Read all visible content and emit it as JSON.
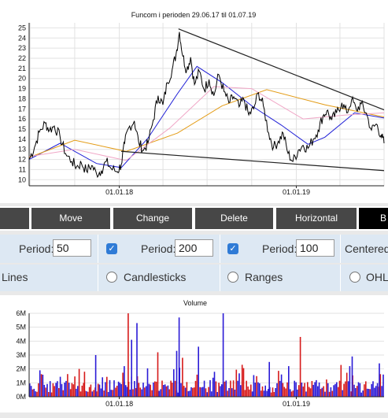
{
  "chart_data": [
    {
      "type": "line",
      "title": "Funcom i perioden 29.06.17 til 01.07.19",
      "x_range": [
        "2017-06-29",
        "2019-07-01"
      ],
      "ylim": [
        9.4,
        25.5
      ],
      "y_ticks": [
        10,
        11,
        12,
        13,
        14,
        15,
        16,
        17,
        18,
        19,
        20,
        21,
        22,
        23,
        24,
        25
      ],
      "x_tick_labels": [
        {
          "date": "2018-01-01",
          "label": "01.01.18"
        },
        {
          "date": "2019-01-01",
          "label": "01.01.19"
        }
      ],
      "grid": true,
      "price": [
        [
          "2017-06-29",
          12.0
        ],
        [
          "2017-07-10",
          13.2
        ],
        [
          "2017-07-20",
          14.7
        ],
        [
          "2017-08-01",
          15.6
        ],
        [
          "2017-08-10",
          14.9
        ],
        [
          "2017-08-20",
          15.3
        ],
        [
          "2017-09-01",
          14.2
        ],
        [
          "2017-09-12",
          12.6
        ],
        [
          "2017-09-25",
          11.8
        ],
        [
          "2017-10-05",
          11.3
        ],
        [
          "2017-10-15",
          11.6
        ],
        [
          "2017-10-25",
          10.9
        ],
        [
          "2017-11-05",
          11.4
        ],
        [
          "2017-11-15",
          10.6
        ],
        [
          "2017-11-25",
          10.9
        ],
        [
          "2017-12-05",
          11.8
        ],
        [
          "2017-12-15",
          11.1
        ],
        [
          "2017-12-28",
          10.8
        ],
        [
          "2018-01-05",
          11.5
        ],
        [
          "2018-01-12",
          13.6
        ],
        [
          "2018-01-20",
          15.1
        ],
        [
          "2018-02-01",
          15.8
        ],
        [
          "2018-02-10",
          13.7
        ],
        [
          "2018-02-20",
          12.9
        ],
        [
          "2018-03-01",
          13.6
        ],
        [
          "2018-03-12",
          15.9
        ],
        [
          "2018-03-22",
          18.3
        ],
        [
          "2018-04-01",
          17.4
        ],
        [
          "2018-04-10",
          19.6
        ],
        [
          "2018-04-20",
          20.9
        ],
        [
          "2018-04-28",
          22.4
        ],
        [
          "2018-05-05",
          24.6
        ],
        [
          "2018-05-12",
          22.2
        ],
        [
          "2018-05-20",
          20.8
        ],
        [
          "2018-05-28",
          22.1
        ],
        [
          "2018-06-05",
          19.4
        ],
        [
          "2018-06-15",
          20.7
        ],
        [
          "2018-06-25",
          18.9
        ],
        [
          "2018-07-05",
          19.9
        ],
        [
          "2018-07-15",
          18.3
        ],
        [
          "2018-07-25",
          20.4
        ],
        [
          "2018-08-05",
          18.7
        ],
        [
          "2018-08-15",
          17.6
        ],
        [
          "2018-08-25",
          18.2
        ],
        [
          "2018-09-05",
          17.2
        ],
        [
          "2018-09-15",
          17.9
        ],
        [
          "2018-09-25",
          16.4
        ],
        [
          "2018-10-05",
          17.0
        ],
        [
          "2018-10-15",
          18.6
        ],
        [
          "2018-10-25",
          17.3
        ],
        [
          "2018-11-05",
          14.6
        ],
        [
          "2018-11-15",
          13.2
        ],
        [
          "2018-11-25",
          13.8
        ],
        [
          "2018-12-05",
          14.6
        ],
        [
          "2018-12-15",
          12.6
        ],
        [
          "2018-12-25",
          11.8
        ],
        [
          "2019-01-05",
          12.9
        ],
        [
          "2019-01-15",
          13.4
        ],
        [
          "2019-01-25",
          13.1
        ],
        [
          "2019-02-05",
          14.0
        ],
        [
          "2019-02-15",
          14.9
        ],
        [
          "2019-02-25",
          16.3
        ],
        [
          "2019-03-05",
          16.8
        ],
        [
          "2019-03-15",
          15.9
        ],
        [
          "2019-03-25",
          16.6
        ],
        [
          "2019-04-05",
          17.6
        ],
        [
          "2019-04-15",
          16.6
        ],
        [
          "2019-04-25",
          17.9
        ],
        [
          "2019-05-05",
          16.9
        ],
        [
          "2019-05-15",
          17.5
        ],
        [
          "2019-05-25",
          16.6
        ],
        [
          "2019-06-05",
          14.9
        ],
        [
          "2019-06-15",
          15.5
        ],
        [
          "2019-06-25",
          14.4
        ],
        [
          "2019-07-01",
          13.6
        ]
      ],
      "moving_averages": [
        {
          "period": 50,
          "color": "#1f1fd6",
          "points": [
            [
              "2017-06-29",
              12.0
            ],
            [
              "2017-09-01",
              13.6
            ],
            [
              "2017-11-15",
              11.6
            ],
            [
              "2018-01-05",
              11.2
            ],
            [
              "2018-03-01",
              14.1
            ],
            [
              "2018-05-01",
              18.5
            ],
            [
              "2018-06-10",
              21.2
            ],
            [
              "2018-08-01",
              19.6
            ],
            [
              "2018-10-01",
              17.3
            ],
            [
              "2018-12-01",
              15.4
            ],
            [
              "2019-01-25",
              13.5
            ],
            [
              "2019-03-01",
              14.2
            ],
            [
              "2019-05-01",
              16.6
            ],
            [
              "2019-07-01",
              16.1
            ]
          ]
        },
        {
          "period": 200,
          "color": "#e39b14",
          "points": [
            [
              "2017-06-29",
              12.2
            ],
            [
              "2017-10-01",
              13.9
            ],
            [
              "2018-01-15",
              12.8
            ],
            [
              "2018-05-01",
              14.6
            ],
            [
              "2018-08-01",
              17.3
            ],
            [
              "2018-11-01",
              18.9
            ],
            [
              "2019-03-01",
              17.4
            ],
            [
              "2019-07-01",
              16.2
            ]
          ]
        },
        {
          "period": 100,
          "color": "#f0a6c6",
          "points": [
            [
              "2017-06-29",
              12.3
            ],
            [
              "2017-10-01",
              13.0
            ],
            [
              "2018-01-15",
              11.9
            ],
            [
              "2018-04-15",
              15.1
            ],
            [
              "2018-07-15",
              19.2
            ],
            [
              "2018-10-01",
              19.0
            ],
            [
              "2019-01-15",
              16.0
            ],
            [
              "2019-04-15",
              16.4
            ],
            [
              "2019-07-01",
              16.6
            ]
          ]
        }
      ],
      "trend_lines": [
        {
          "from": [
            "2018-05-03",
            24.9
          ],
          "to": [
            "2019-07-01",
            16.9
          ]
        },
        {
          "from": [
            "2018-01-05",
            12.8
          ],
          "to": [
            "2019-07-01",
            10.9
          ]
        }
      ]
    },
    {
      "type": "bar",
      "title": "Volume",
      "ylim": [
        0,
        6000000
      ],
      "y_tick_labels": [
        "0M",
        "1M",
        "2M",
        "3M",
        "4M",
        "5M",
        "6M"
      ],
      "x_tick_labels": [
        {
          "date": "2018-01-01",
          "label": "01.01.18"
        },
        {
          "date": "2019-01-01",
          "label": "01.01.19"
        }
      ],
      "colors": {
        "up": "#2a1ad6",
        "down": "#d61a1a"
      },
      "spikes": [
        [
          "2017-07-20",
          1.9
        ],
        [
          "2017-10-20",
          1.8
        ],
        [
          "2017-11-12",
          3.0
        ],
        [
          "2018-01-10",
          2.2
        ],
        [
          "2018-01-18",
          6.0
        ],
        [
          "2018-01-25",
          4.1
        ],
        [
          "2018-02-05",
          5.3
        ],
        [
          "2018-03-20",
          3.2
        ],
        [
          "2018-04-28",
          3.3
        ],
        [
          "2018-05-03",
          5.7
        ],
        [
          "2018-05-10",
          2.8
        ],
        [
          "2018-06-12",
          3.6
        ],
        [
          "2018-08-02",
          6.0
        ],
        [
          "2018-09-10",
          2.3
        ],
        [
          "2018-11-05",
          2.5
        ],
        [
          "2018-12-15",
          2.2
        ],
        [
          "2019-01-08",
          4.3
        ],
        [
          "2019-04-25",
          2.9
        ],
        [
          "2019-06-20",
          2.4
        ]
      ]
    }
  ],
  "toolbar": {
    "buttons": [
      "",
      "Move",
      "Change",
      "Delete",
      "Horizontal",
      "B"
    ]
  },
  "period_row": {
    "period_label": "Period:",
    "ma1_value": "50",
    "ma2_value": "200",
    "ma3_value": "100",
    "centered_label": "Centered",
    "checkmark": "✓"
  },
  "style_row": {
    "lines": "Lines",
    "candlesticks": "Candlesticks",
    "ranges": "Ranges",
    "ohlc": "OHLC"
  }
}
